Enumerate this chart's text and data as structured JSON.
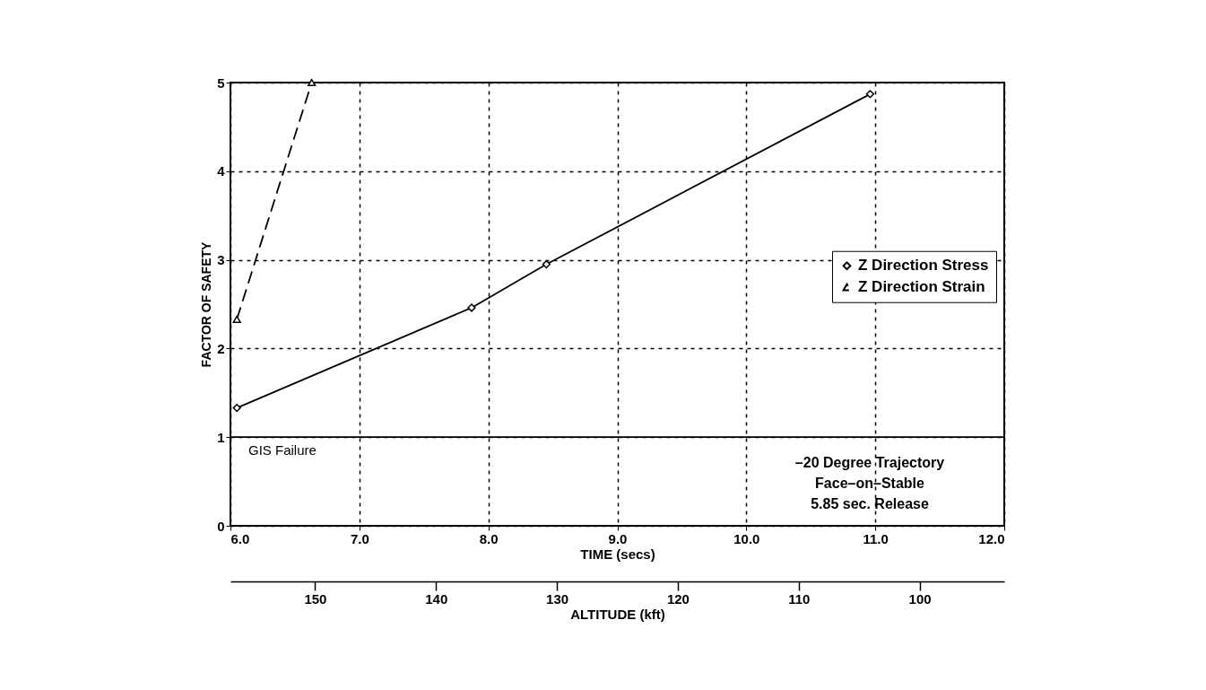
{
  "chart_data": {
    "type": "line",
    "xlabel": "TIME (secs)",
    "ylabel": "FACTOR OF SAFETY",
    "x2label": "ALTITUDE (kft)",
    "series": [
      {
        "name": "Z Direction Stress",
        "color": "#000000",
        "marker": "diamond",
        "line_style": "solid",
        "x": [
          6.05,
          7.87,
          8.45,
          10.96
        ],
        "values": [
          1.33,
          2.46,
          2.95,
          4.87
        ]
      },
      {
        "name": "Z Direction Strain",
        "color": "#000000",
        "marker": "triangle",
        "line_style": "dashed",
        "x": [
          6.05,
          6.63
        ],
        "values": [
          2.33,
          5.0
        ]
      }
    ],
    "xlim": [
      6,
      12
    ],
    "ylim": [
      0,
      5
    ],
    "xticks": [
      {
        "value": 6,
        "label": "6.0"
      },
      {
        "value": 7,
        "label": "7.0"
      },
      {
        "value": 8,
        "label": "8.0"
      },
      {
        "value": 9,
        "label": "9.0"
      },
      {
        "value": 10,
        "label": "10.0"
      },
      {
        "value": 11,
        "label": "11.0"
      },
      {
        "value": 12,
        "label": "12.0"
      }
    ],
    "yticks": [
      0,
      1,
      2,
      3,
      4,
      5
    ],
    "x2lim": [
      157,
      93
    ],
    "x2ticks": [
      150,
      140,
      130,
      120,
      110,
      100
    ],
    "ref_lines": [
      {
        "axis": "y",
        "value": 1,
        "label": "GIS Failure",
        "color": "#000000",
        "line_style": "solid"
      }
    ],
    "annotations": [
      "–20 Degree Trajectory",
      "Face–on–Stable",
      "5.85 sec. Release"
    ],
    "grid": true,
    "legend": "right"
  }
}
